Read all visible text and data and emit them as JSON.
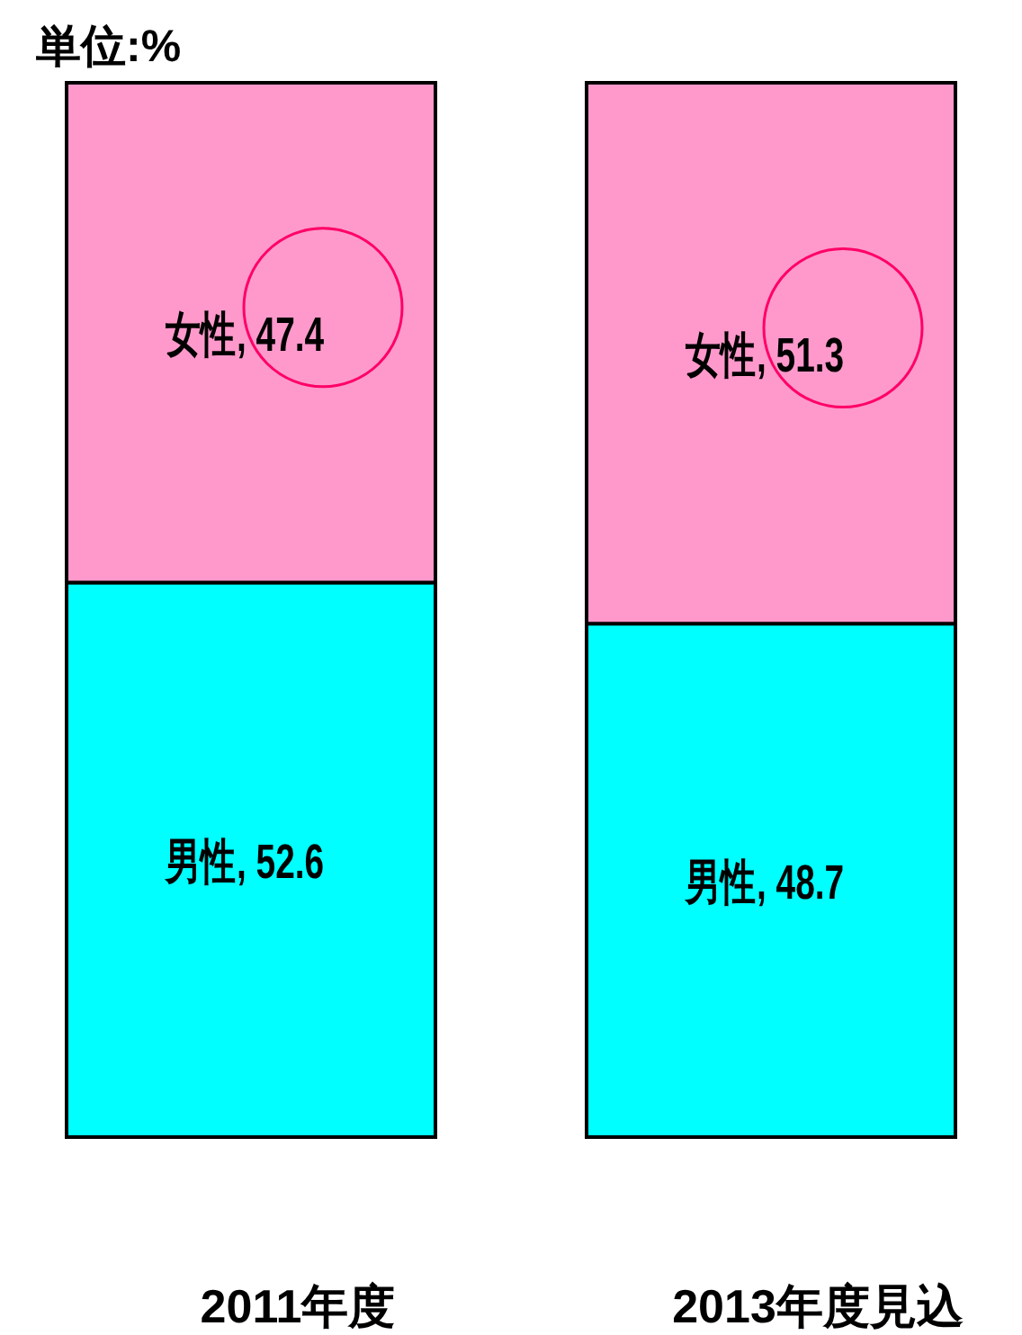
{
  "chart_data": {
    "type": "bar",
    "stacked": true,
    "categories": [
      "2011年度",
      "2013年度見込"
    ],
    "series": [
      {
        "name": "男性",
        "color": "#00ffff",
        "values": [
          52.6,
          48.7
        ],
        "value_labels": [
          ", 52.6",
          ", 48.7"
        ]
      },
      {
        "name": "女性",
        "color": "#ff99cc",
        "values": [
          47.4,
          51.3
        ],
        "value_labels": [
          ", 47.4",
          ", 51.3"
        ]
      }
    ],
    "legend": false,
    "grid": false,
    "annotations": [
      "単位:%"
    ]
  }
}
